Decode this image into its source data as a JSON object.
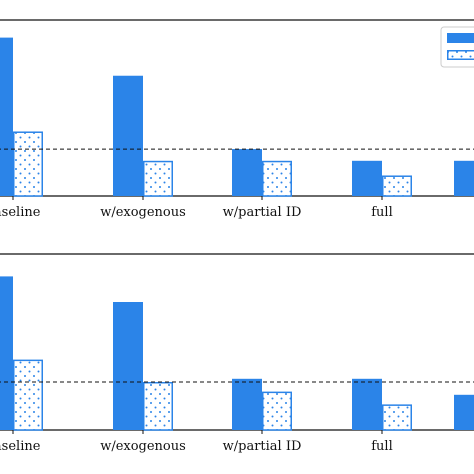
{
  "colors": {
    "solid": "#2b84e8",
    "hatch_stroke": "#2b84e8",
    "hatch_dot": "#2b84e8",
    "reference_line": "#111111",
    "axis": "#111111"
  },
  "chart_data": [
    {
      "type": "bar",
      "categories": [
        "baseline",
        "w/exogenous",
        "w/partial ID",
        "full",
        ""
      ],
      "series": [
        {
          "style": "solid",
          "values": [
            5.4,
            4.1,
            1.6,
            1.2,
            1.2
          ]
        },
        {
          "style": "dotted-hatch",
          "values": [
            2.2,
            1.2,
            1.2,
            0.7,
            null
          ]
        }
      ],
      "reference_line": 1.6,
      "ylim": [
        0,
        6
      ],
      "legend": "top-right",
      "grid": false
    },
    {
      "type": "bar",
      "categories": [
        "baseline",
        "w/exogenous",
        "w/partial ID",
        "full",
        ""
      ],
      "series": [
        {
          "style": "solid",
          "values": [
            4.8,
            4.0,
            1.6,
            1.6,
            1.1
          ]
        },
        {
          "style": "dotted-hatch",
          "values": [
            2.2,
            1.5,
            1.2,
            0.8,
            null
          ]
        }
      ],
      "reference_line": 1.5,
      "ylim": [
        0,
        5.5
      ],
      "legend": "none",
      "grid": false
    }
  ]
}
